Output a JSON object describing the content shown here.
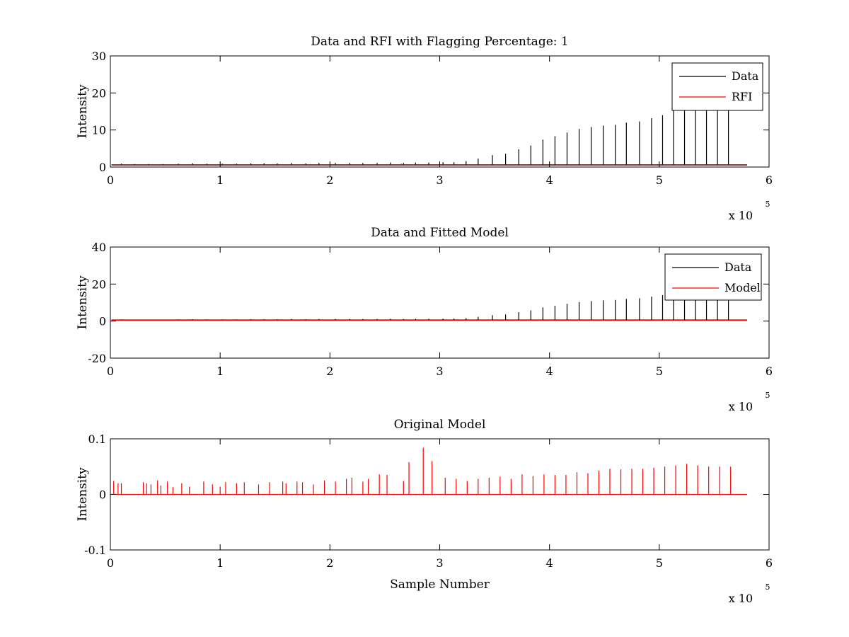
{
  "figure": {
    "background": "#ffffff"
  },
  "chart_data": [
    {
      "type": "line",
      "title": "Data and RFI with Flagging Percentage: 1",
      "xlabel": "",
      "ylabel": "Intensity",
      "xlim": [
        0,
        6
      ],
      "ylim": [
        0,
        30
      ],
      "xticks": [
        0,
        1,
        2,
        3,
        4,
        5,
        6
      ],
      "yticks": [
        0,
        10,
        20,
        30
      ],
      "x_multiplier": {
        "base": "x 10",
        "exponent": "5"
      },
      "legend": {
        "position": "top-right",
        "entries": [
          "Data",
          "RFI"
        ]
      },
      "series": [
        {
          "name": "Data",
          "color": "#000000",
          "baseline": 0.6,
          "spikes": [
            [
              0.1,
              0.9
            ],
            [
              0.22,
              0.8
            ],
            [
              0.35,
              0.8
            ],
            [
              0.48,
              0.8
            ],
            [
              0.62,
              0.9
            ],
            [
              0.75,
              1.0
            ],
            [
              0.88,
              0.9
            ],
            [
              1.02,
              0.9
            ],
            [
              1.15,
              0.9
            ],
            [
              1.28,
              1.0
            ],
            [
              1.4,
              1.0
            ],
            [
              1.52,
              1.0
            ],
            [
              1.65,
              1.1
            ],
            [
              1.78,
              1.0
            ],
            [
              1.9,
              1.1
            ],
            [
              2.05,
              1.1
            ],
            [
              2.18,
              1.1
            ],
            [
              2.3,
              1.1
            ],
            [
              2.43,
              1.1
            ],
            [
              2.55,
              1.2
            ],
            [
              2.67,
              1.1
            ],
            [
              2.78,
              1.2
            ],
            [
              2.9,
              1.2
            ],
            [
              3.03,
              1.3
            ],
            [
              3.13,
              1.3
            ],
            [
              3.24,
              1.6
            ],
            [
              3.35,
              2.3
            ],
            [
              3.48,
              3.2
            ],
            [
              3.6,
              3.6
            ],
            [
              3.72,
              4.8
            ],
            [
              3.83,
              5.8
            ],
            [
              3.94,
              7.4
            ],
            [
              4.05,
              8.3
            ],
            [
              4.16,
              9.3
            ],
            [
              4.27,
              10.3
            ],
            [
              4.38,
              10.8
            ],
            [
              4.49,
              11.2
            ],
            [
              4.6,
              11.4
            ],
            [
              4.7,
              12.0
            ],
            [
              4.82,
              12.3
            ],
            [
              4.93,
              13.2
            ],
            [
              5.03,
              14.0
            ],
            [
              5.13,
              15.5
            ],
            [
              5.23,
              16.0
            ],
            [
              5.33,
              16.0
            ],
            [
              5.43,
              16.0
            ],
            [
              5.53,
              16.0
            ],
            [
              5.63,
              16.0
            ]
          ]
        },
        {
          "name": "RFI",
          "color": "#ff0000",
          "baseline": 0.5,
          "spikes": [
            [
              2.65,
              0.9
            ]
          ]
        }
      ]
    },
    {
      "type": "line",
      "title": "Data and Fitted Model",
      "xlabel": "",
      "ylabel": "Intensity",
      "xlim": [
        0,
        6
      ],
      "ylim": [
        -20,
        40
      ],
      "xticks": [
        0,
        1,
        2,
        3,
        4,
        5,
        6
      ],
      "yticks": [
        -20,
        0,
        20,
        40
      ],
      "x_multiplier": {
        "base": "x 10",
        "exponent": "5"
      },
      "legend": {
        "position": "top-right",
        "entries": [
          "Data",
          "Model"
        ]
      },
      "series": [
        {
          "name": "Data",
          "color": "#000000",
          "baseline": 0.6,
          "spikes": [
            [
              0.1,
              0.9
            ],
            [
              0.22,
              0.8
            ],
            [
              0.35,
              0.8
            ],
            [
              0.48,
              0.8
            ],
            [
              0.62,
              0.9
            ],
            [
              0.75,
              1.0
            ],
            [
              0.88,
              0.9
            ],
            [
              1.02,
              0.9
            ],
            [
              1.15,
              0.9
            ],
            [
              1.28,
              1.0
            ],
            [
              1.4,
              1.0
            ],
            [
              1.52,
              1.0
            ],
            [
              1.65,
              1.1
            ],
            [
              1.78,
              1.0
            ],
            [
              1.9,
              1.1
            ],
            [
              2.05,
              1.1
            ],
            [
              2.18,
              1.1
            ],
            [
              2.3,
              1.1
            ],
            [
              2.43,
              1.1
            ],
            [
              2.55,
              1.2
            ],
            [
              2.67,
              1.1
            ],
            [
              2.78,
              1.2
            ],
            [
              2.9,
              1.2
            ],
            [
              3.03,
              1.3
            ],
            [
              3.13,
              1.3
            ],
            [
              3.24,
              1.6
            ],
            [
              3.35,
              2.3
            ],
            [
              3.48,
              3.2
            ],
            [
              3.6,
              3.6
            ],
            [
              3.72,
              4.8
            ],
            [
              3.83,
              5.8
            ],
            [
              3.94,
              7.4
            ],
            [
              4.05,
              8.3
            ],
            [
              4.16,
              9.3
            ],
            [
              4.27,
              10.3
            ],
            [
              4.38,
              10.8
            ],
            [
              4.49,
              11.2
            ],
            [
              4.6,
              11.4
            ],
            [
              4.7,
              12.0
            ],
            [
              4.82,
              12.3
            ],
            [
              4.93,
              13.2
            ],
            [
              5.03,
              14.0
            ],
            [
              5.13,
              15.5
            ],
            [
              5.23,
              16.0
            ],
            [
              5.33,
              16.0
            ],
            [
              5.43,
              16.0
            ],
            [
              5.53,
              16.0
            ],
            [
              5.63,
              16.0
            ]
          ]
        },
        {
          "name": "Model",
          "color": "#ff0000",
          "baseline": 0.4,
          "spikes": []
        }
      ]
    },
    {
      "type": "line",
      "title": "Original Model",
      "xlabel": "Sample Number",
      "ylabel": "Intensity",
      "xlim": [
        0,
        6
      ],
      "ylim": [
        -0.1,
        0.1
      ],
      "xticks": [
        0,
        1,
        2,
        3,
        4,
        5,
        6
      ],
      "yticks": [
        -0.1,
        0,
        0.1
      ],
      "x_multiplier": {
        "base": "x 10",
        "exponent": "5"
      },
      "legend": null,
      "series": [
        {
          "color": "#ff0000",
          "baseline": 0.0,
          "spikes": [
            [
              0.03,
              0.024
            ],
            [
              0.07,
              0.02
            ],
            [
              0.1,
              0.02
            ],
            [
              0.3,
              0.022
            ],
            [
              0.33,
              0.02
            ],
            [
              0.37,
              0.018
            ],
            [
              0.43,
              0.025
            ],
            [
              0.46,
              0.016
            ],
            [
              0.52,
              0.023
            ],
            [
              0.57,
              0.013
            ],
            [
              0.65,
              0.02
            ],
            [
              0.72,
              0.014
            ],
            [
              0.85,
              0.023
            ],
            [
              0.93,
              0.018
            ],
            [
              1.0,
              0.014
            ],
            [
              1.05,
              0.022
            ],
            [
              1.15,
              0.02
            ],
            [
              1.22,
              0.022
            ],
            [
              1.35,
              0.018
            ],
            [
              1.45,
              0.022
            ],
            [
              1.57,
              0.023
            ],
            [
              1.6,
              0.02
            ],
            [
              1.7,
              0.023
            ],
            [
              1.75,
              0.022
            ],
            [
              1.85,
              0.018
            ],
            [
              1.95,
              0.025
            ],
            [
              2.05,
              0.023
            ],
            [
              2.15,
              0.028
            ],
            [
              2.2,
              0.03
            ],
            [
              2.3,
              0.023
            ],
            [
              2.35,
              0.028
            ],
            [
              2.45,
              0.036
            ],
            [
              2.52,
              0.035
            ],
            [
              2.67,
              0.024
            ],
            [
              2.72,
              0.058
            ],
            [
              2.85,
              0.084
            ],
            [
              2.93,
              0.06
            ],
            [
              3.05,
              0.03
            ],
            [
              3.15,
              0.028
            ],
            [
              3.25,
              0.024
            ],
            [
              3.35,
              0.028
            ],
            [
              3.45,
              0.03
            ],
            [
              3.55,
              0.032
            ],
            [
              3.65,
              0.028
            ],
            [
              3.75,
              0.036
            ],
            [
              3.85,
              0.033
            ],
            [
              3.95,
              0.036
            ],
            [
              4.05,
              0.035
            ],
            [
              4.15,
              0.035
            ],
            [
              4.25,
              0.04
            ],
            [
              4.35,
              0.038
            ],
            [
              4.45,
              0.043
            ],
            [
              4.55,
              0.046
            ],
            [
              4.65,
              0.045
            ],
            [
              4.75,
              0.046
            ],
            [
              4.85,
              0.046
            ],
            [
              4.95,
              0.048
            ],
            [
              5.05,
              0.05
            ],
            [
              5.15,
              0.052
            ],
            [
              5.25,
              0.055
            ],
            [
              5.35,
              0.052
            ],
            [
              5.45,
              0.05
            ],
            [
              5.55,
              0.05
            ],
            [
              5.65,
              0.05
            ]
          ]
        }
      ]
    }
  ]
}
